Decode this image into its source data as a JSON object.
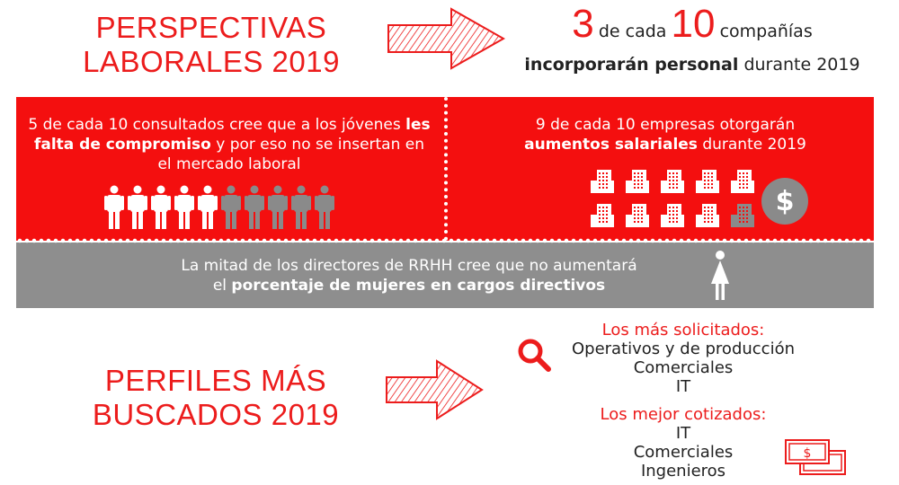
{
  "header": {
    "title_line1": "PERSPECTIVAS",
    "title_line2": "LABORALES 2019"
  },
  "headline": {
    "num1": "3",
    "mid": "de cada",
    "num2": "10",
    "word": "compañías",
    "bold": "incorporarán personal",
    "rest": "durante 2019"
  },
  "left_panel": {
    "pre": "5 de cada 10 consultados cree que a los jóvenes",
    "bold": "les falta de compromiso",
    "post": "y por eso no se insertan en el mercado laboral",
    "highlighted": 5,
    "total": 10
  },
  "right_panel": {
    "line1": "9 de cada 10 empresas otorgarán",
    "bold": "aumentos salariales",
    "post": "durante 2019",
    "highlighted": 9,
    "total": 10,
    "icon": "dollar-coin"
  },
  "gray_band": {
    "line1": "La mitad de los directores de RRHH cree que no aumentará",
    "pre2": "el",
    "bold": "porcentaje de mujeres en cargos directivos",
    "icon": "woman"
  },
  "profiles": {
    "title_line1": "PERFILES MÁS",
    "title_line2": "BUSCADOS 2019",
    "solicitados_label": "Los más solicitados:",
    "solicitados": [
      "Operativos y de producción",
      "Comerciales",
      "IT"
    ],
    "cotizados_label": "Los mejor cotizados:",
    "cotizados": [
      "IT",
      "Comerciales",
      "Ingenieros"
    ]
  },
  "colors": {
    "accent": "#ec1c1c",
    "panel_red": "#f40f0f",
    "gray": "#8e8e8e",
    "dim": "#8a8a8a"
  }
}
